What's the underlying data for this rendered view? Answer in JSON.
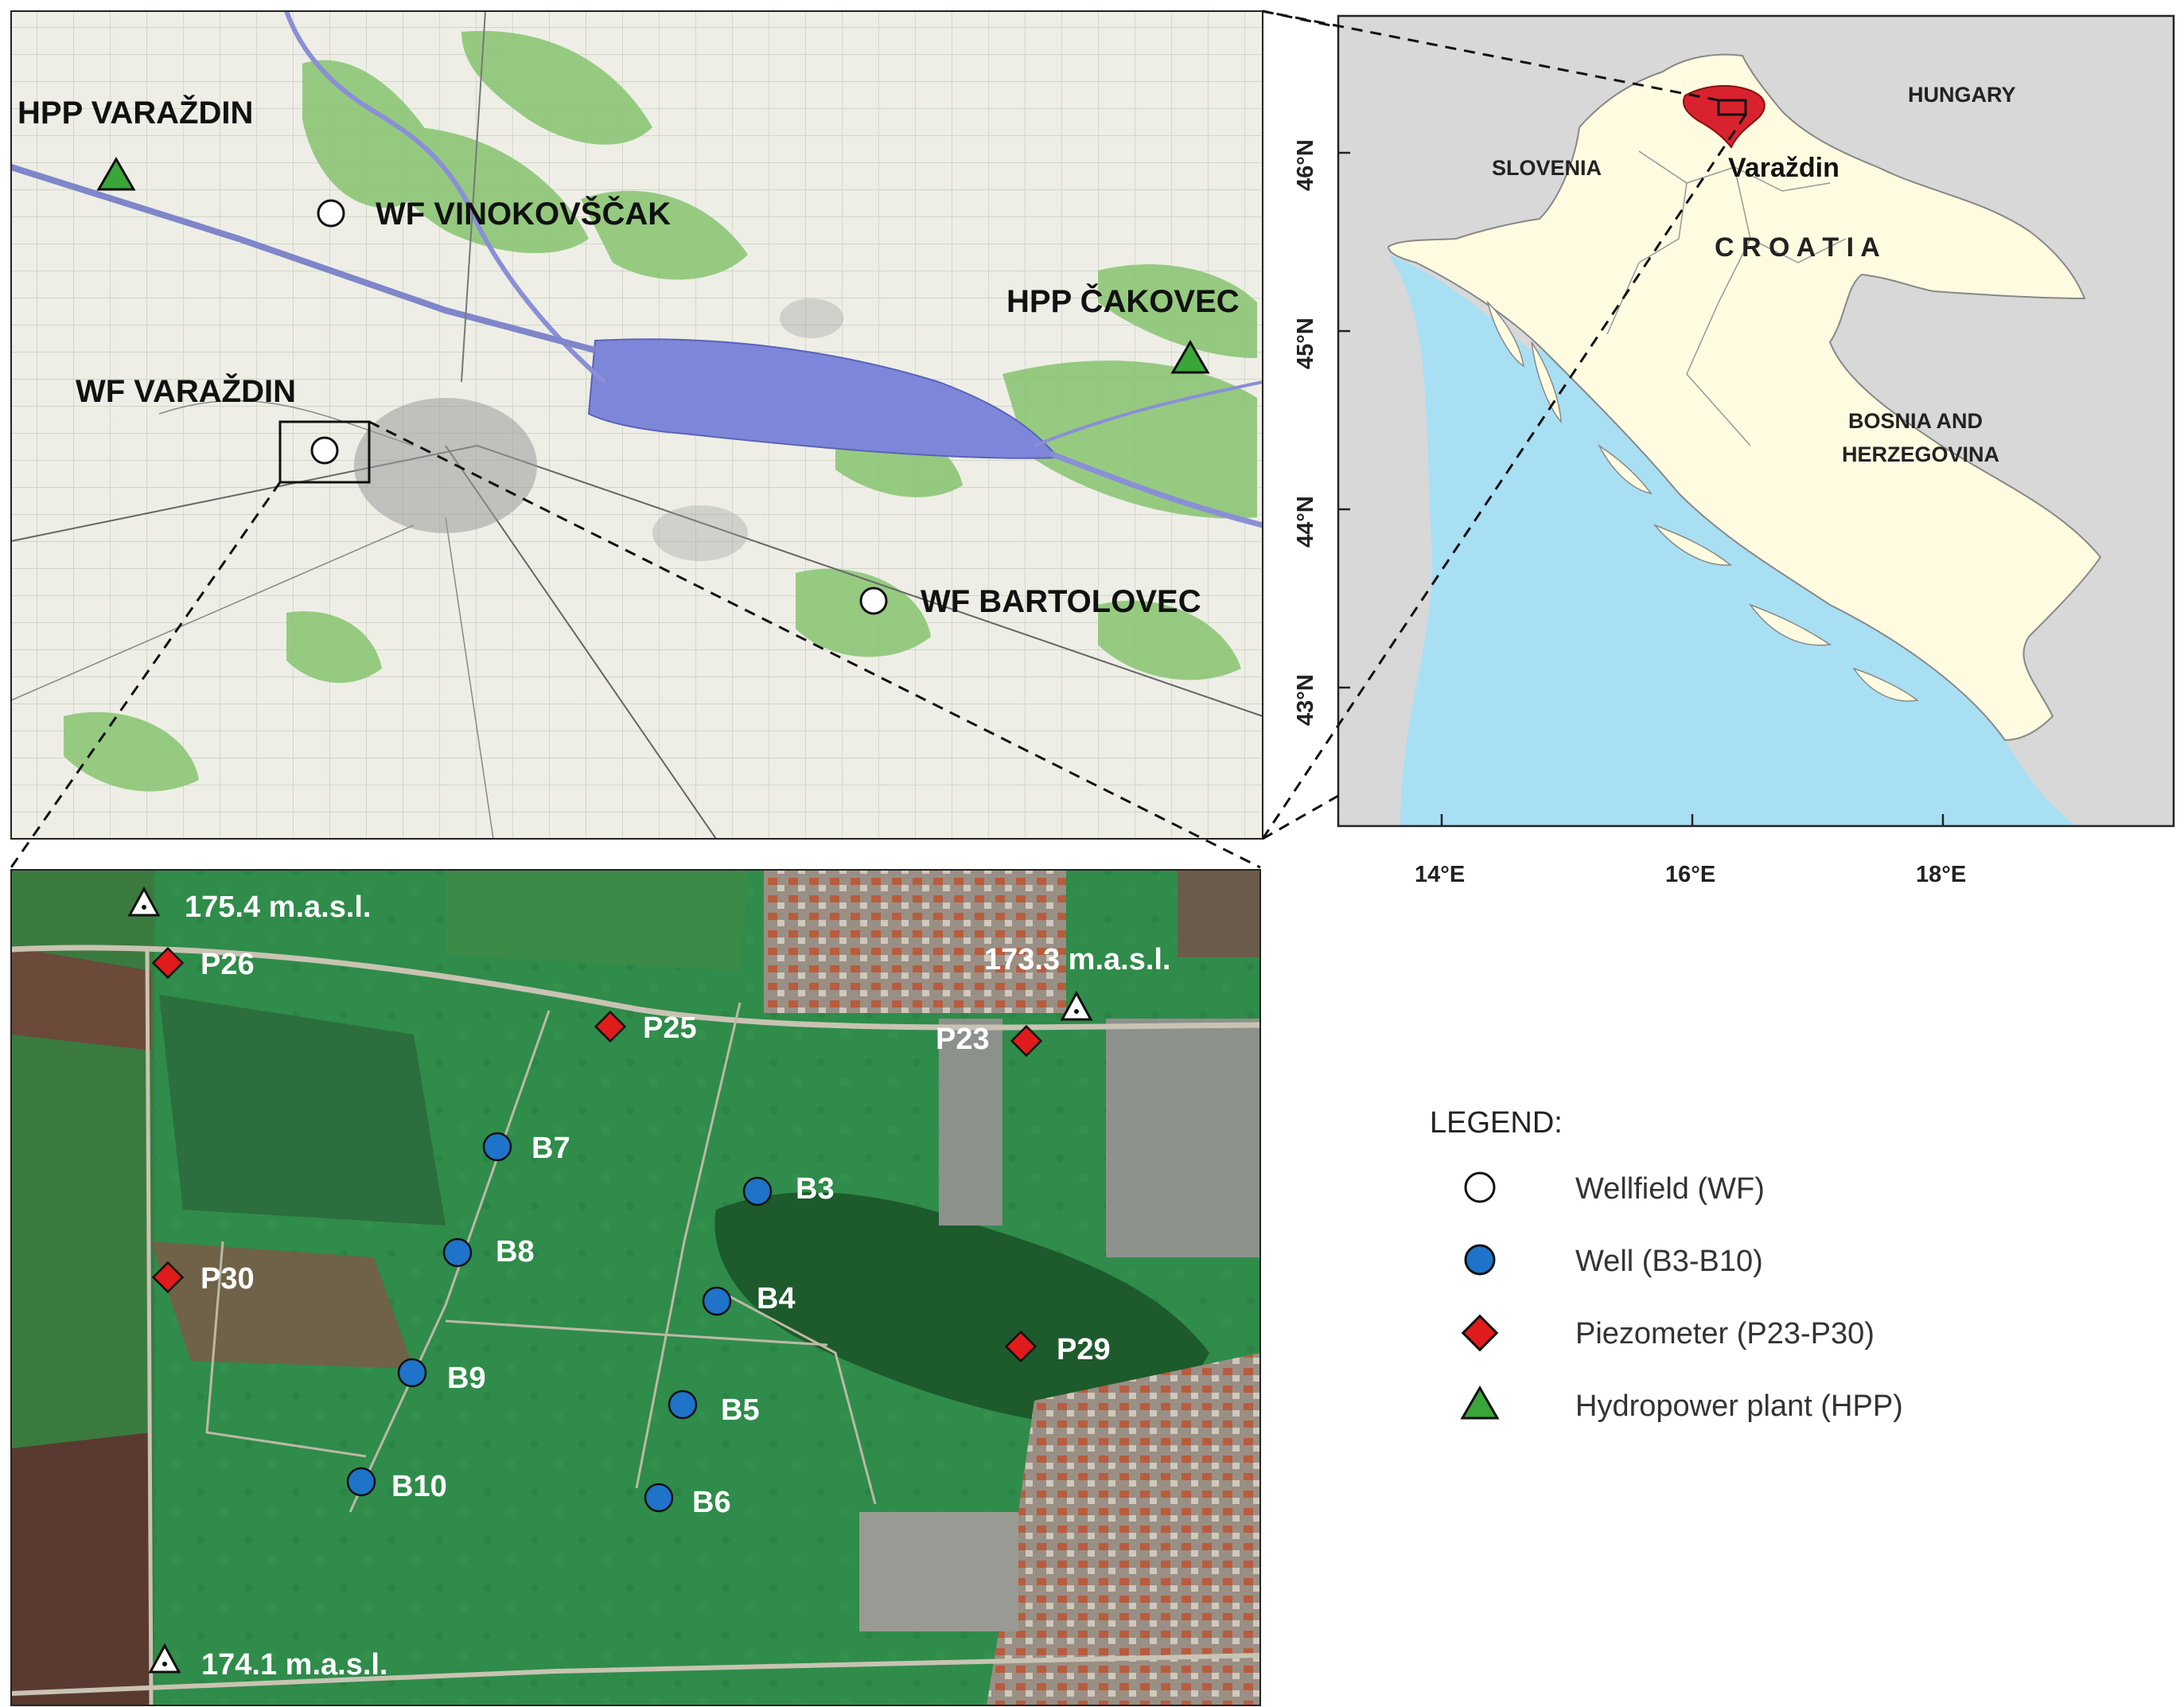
{
  "topo_map": {
    "wellfields": [
      {
        "label": "WF VINOKOVŠČAK"
      },
      {
        "label": "WF VARAŽDIN"
      },
      {
        "label": "WF BARTOLOVEC"
      }
    ],
    "hpps": [
      {
        "label": "HPP VARAŽDIN"
      },
      {
        "label": "HPP ČAKOVEC"
      }
    ]
  },
  "country_map": {
    "countries": {
      "slovenia": "SLOVENIA",
      "hungary": "HUNGARY",
      "croatia": "C R O A T I A",
      "bosnia_line1": "BOSNIA AND",
      "bosnia_line2": "HERZEGOVINA"
    },
    "city": "Varaždin",
    "lat_ticks": [
      "46°N",
      "45°N",
      "44°N",
      "43°N"
    ],
    "lon_ticks": [
      "14°E",
      "16°E",
      "18°E"
    ],
    "colors": {
      "sea": "#a9dff3",
      "croatia": "#fefbe1",
      "neighbors": "#d8d8d8",
      "county": "#d8232f"
    }
  },
  "satellite": {
    "elevations": [
      {
        "label": "175.4 m.a.s.l."
      },
      {
        "label": "173.3 m.a.s.l."
      },
      {
        "label": "174.1 m.a.s.l."
      }
    ],
    "piezometers": [
      "P26",
      "P25",
      "P23",
      "P30",
      "P29"
    ],
    "wells": [
      "B7",
      "B3",
      "B8",
      "B4",
      "B9",
      "B5",
      "B10",
      "B6"
    ]
  },
  "legend": {
    "title": "LEGEND:",
    "items": [
      {
        "symbol": "wellfield",
        "label": "Wellfield (WF)"
      },
      {
        "symbol": "well",
        "label": "Well (B3-B10)"
      },
      {
        "symbol": "piezometer",
        "label": "Piezometer (P23-P30)"
      },
      {
        "symbol": "hpp",
        "label": "Hydropower plant (HPP)"
      }
    ],
    "colors": {
      "well": "#1f73c8",
      "piezometer": "#e01b1b",
      "hpp": "#3aa63a",
      "wellfield": "#ffffff"
    }
  }
}
